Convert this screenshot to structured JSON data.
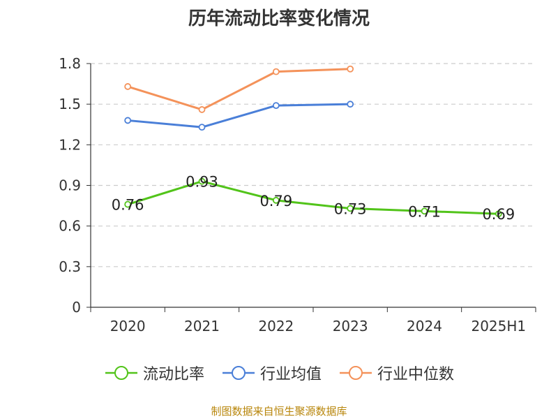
{
  "chart_data": {
    "type": "line",
    "title": "历年流动比率变化情况",
    "categories": [
      "2020",
      "2021",
      "2022",
      "2023",
      "2024",
      "2025H1"
    ],
    "ylim": [
      0,
      1.8
    ],
    "yticks": [
      "0",
      "0.3",
      "0.6",
      "0.9",
      "1.2",
      "1.5",
      "1.8"
    ],
    "grid": true,
    "legend_position": "bottom",
    "series": [
      {
        "name": "流动比率",
        "color": "#52c41a",
        "values": [
          0.76,
          0.93,
          0.79,
          0.73,
          0.71,
          0.69
        ],
        "labels": [
          "0.76",
          "0.93",
          "0.79",
          "0.73",
          "0.71",
          "0.69"
        ]
      },
      {
        "name": "行业均值",
        "color": "#4a7fd8",
        "values": [
          1.38,
          1.33,
          1.49,
          1.5,
          null,
          null
        ]
      },
      {
        "name": "行业中位数",
        "color": "#f4925a",
        "values": [
          1.63,
          1.46,
          1.74,
          1.76,
          null,
          null
        ]
      }
    ]
  },
  "source": "制图数据来自恒生聚源数据库"
}
